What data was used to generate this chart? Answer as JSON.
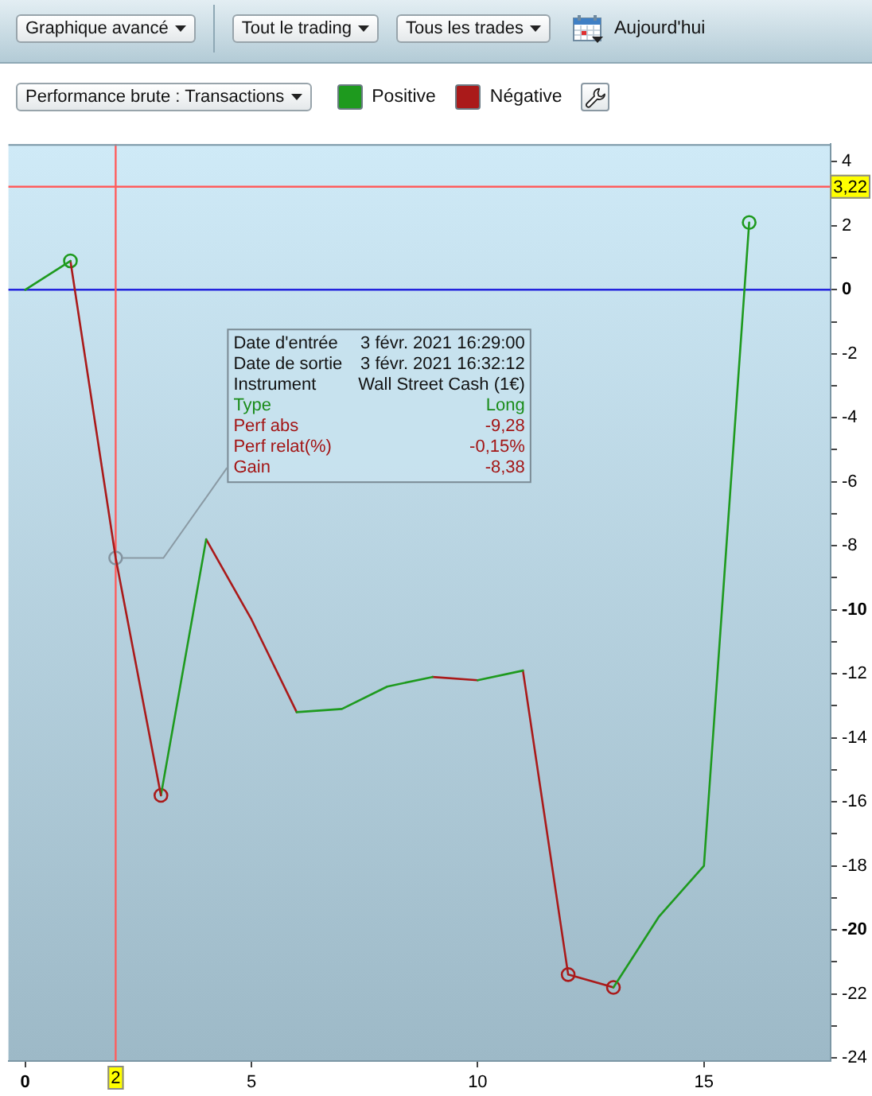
{
  "chart_data": {
    "type": "line",
    "title": "Performance brute : Transactions",
    "annotations": [
      "Graphique avancé",
      "Tout le trading",
      "Tous les trades",
      "Aujourd'hui",
      "Date d'entrée",
      "3 févr. 2021 16:29:00",
      "Date de sortie",
      "3 févr. 2021 16:32:12",
      "Instrument",
      "Wall Street Cash (1€)",
      "Type",
      "Long",
      "Perf abs",
      "-9,28",
      "Perf relat(%)",
      "-0,15%",
      {
        "text": "Gain",
        "x": 2,
        "y": -8.38
      },
      "-8,38"
    ],
    "series": [
      {
        "name": "Positive",
        "color": "#1e9a1e",
        "x": [
          0,
          1
        ],
        "values": [
          0,
          0.9
        ]
      },
      {
        "name": "Négative",
        "color": "#aa1a1a",
        "x": [
          1,
          2,
          3
        ],
        "values": [
          0.9,
          -8.38,
          -15.8
        ]
      },
      {
        "color": "#1e9a1e",
        "x": [
          3,
          4
        ],
        "values": [
          -15.8,
          -7.8
        ]
      },
      {
        "color": "#1e9a1e",
        "x": [
          6,
          7,
          8,
          9
        ],
        "values": [
          -13.2,
          -13.1,
          -12.4,
          -12.1
        ]
      },
      {
        "color": "#1e9a1e",
        "x": [
          10,
          11
        ],
        "values": [
          -12.2,
          -11.9
        ]
      },
      {
        "color": "#1e9a1e",
        "x": [
          13,
          14,
          15,
          16
        ],
        "values": [
          -21.8,
          -19.6,
          -18.0,
          2.1
        ]
      },
      {
        "color": "#aa1a1a",
        "x": [
          4,
          5,
          6
        ],
        "values": [
          -7.8,
          -10.3,
          -13.2
        ]
      },
      {
        "color": "#aa1a1a",
        "x": [
          9,
          10
        ],
        "values": [
          -12.1,
          -12.2
        ]
      },
      {
        "color": "#aa1a1a",
        "x": [
          11,
          12,
          13
        ],
        "values": [
          -11.9,
          -21.4,
          -21.8
        ]
      },
      {
        "type": "scatter",
        "marker": "circle",
        "colors": [
          "#1e9a1e",
          "#8494a0",
          "#aa1a1a",
          "#aa1a1a",
          "#aa1a1a",
          "#1e9a1e"
        ],
        "x": [
          1,
          2,
          3,
          12,
          13,
          16
        ],
        "values": [
          0.9,
          -8.38,
          -15.8,
          -21.4,
          -21.8,
          2.1
        ]
      }
    ],
    "xlim": [
      -0.37,
      17.8
    ],
    "xticks": [
      0,
      5,
      10,
      15
    ],
    "ylim": [
      -24.1,
      4.55
    ],
    "yticks": [
      -24,
      {
        "value": -23,
        "label": null
      },
      -22,
      {
        "value": -21,
        "label": null
      },
      -20,
      {
        "value": -19,
        "label": null
      },
      -18,
      {
        "value": -17,
        "label": null
      },
      -16,
      {
        "value": -15,
        "label": null
      },
      -14,
      {
        "value": -13,
        "label": null
      },
      -12,
      {
        "value": -11,
        "label": null
      },
      -10,
      {
        "value": -9,
        "label": null
      },
      -8,
      {
        "value": -7,
        "label": null
      },
      -6,
      {
        "value": -5,
        "label": null
      },
      -4,
      {
        "value": -3,
        "label": null
      },
      -2,
      {
        "value": -1,
        "label": null
      },
      0,
      {
        "value": 1,
        "label": null
      },
      2,
      {
        "value": 3,
        "label": null
      },
      4
    ],
    "ref_lines": [
      {
        "axis": "y",
        "value": 3.22,
        "label": "3,22",
        "color": "#ff5c5c"
      },
      {
        "axis": "y",
        "value": 0,
        "color": "#2424dd"
      },
      {
        "axis": "x",
        "value": 2,
        "label": "2",
        "color": "#ff5c5c"
      }
    ],
    "legend": "top"
  }
}
